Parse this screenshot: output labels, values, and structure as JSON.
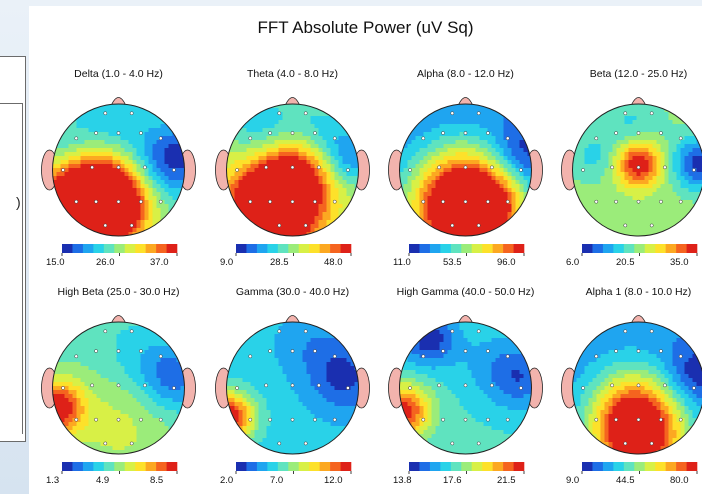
{
  "figure": {
    "title": "FFT Absolute Power  (uV Sq)"
  },
  "left_panel": {
    "glyph": ")"
  },
  "colors": {
    "ramp": [
      "#1a2fb0",
      "#1e6ee6",
      "#1fa5f0",
      "#29d2e8",
      "#5fe3bf",
      "#9bec7a",
      "#d8f046",
      "#fde12a",
      "#fca821",
      "#f5641f",
      "#de2118"
    ],
    "skin": "#f2b3ad",
    "outline": "#222222"
  },
  "maps": [
    {
      "id": "delta",
      "title": "Delta (1.0 - 4.0 Hz)",
      "scale": [
        "15.0",
        "26.0",
        "37.0"
      ],
      "base": 0.42,
      "blobs": [
        [
          0.26,
          0.78,
          0.25,
          1.0
        ],
        [
          0.46,
          0.7,
          0.2,
          0.55
        ],
        [
          0.95,
          0.4,
          0.18,
          -0.35
        ],
        [
          0.7,
          0.55,
          0.18,
          -0.15
        ],
        [
          0.42,
          0.18,
          0.22,
          -0.15
        ],
        [
          0.1,
          0.35,
          0.12,
          -0.1
        ]
      ]
    },
    {
      "id": "theta",
      "title": "Theta (4.0 - 8.0 Hz)",
      "scale": [
        "9.0",
        "28.5",
        "48.0"
      ],
      "base": 0.55,
      "blobs": [
        [
          0.34,
          0.8,
          0.22,
          0.9
        ],
        [
          0.52,
          0.55,
          0.2,
          0.45
        ],
        [
          0.95,
          0.4,
          0.16,
          -0.35
        ],
        [
          0.25,
          0.15,
          0.2,
          -0.25
        ],
        [
          0.7,
          0.18,
          0.18,
          -0.2
        ]
      ]
    },
    {
      "id": "alpha",
      "title": "Alpha (8.0 - 12.0 Hz)",
      "scale": [
        "11.0",
        "53.5",
        "96.0"
      ],
      "base": 0.18,
      "blobs": [
        [
          0.45,
          0.82,
          0.28,
          0.95
        ],
        [
          0.72,
          0.78,
          0.18,
          0.4
        ],
        [
          0.92,
          0.38,
          0.16,
          -0.18
        ],
        [
          0.5,
          0.55,
          0.22,
          0.25
        ]
      ]
    },
    {
      "id": "beta",
      "title": "Beta (12.0 - 25.0 Hz)",
      "scale": [
        "6.0",
        "20.5",
        "35.0"
      ],
      "base": 0.5,
      "blobs": [
        [
          0.5,
          0.45,
          0.12,
          0.55
        ],
        [
          0.96,
          0.45,
          0.14,
          -0.45
        ],
        [
          0.15,
          0.4,
          0.14,
          -0.15
        ],
        [
          0.45,
          0.15,
          0.18,
          -0.15
        ]
      ]
    },
    {
      "id": "highbeta",
      "title": "High Beta (25.0 - 30.0 Hz)",
      "scale": [
        "1.3",
        "4.9",
        "8.5"
      ],
      "base": 0.42,
      "blobs": [
        [
          0.03,
          0.65,
          0.14,
          0.6
        ],
        [
          0.92,
          0.42,
          0.18,
          -0.3
        ],
        [
          0.5,
          0.78,
          0.3,
          0.15
        ],
        [
          0.62,
          0.25,
          0.2,
          -0.1
        ]
      ]
    },
    {
      "id": "gamma",
      "title": "Gamma (30.0 - 40.0 Hz)",
      "scale": [
        "2.0",
        "7.0",
        "12.0"
      ],
      "base": 0.32,
      "blobs": [
        [
          0.02,
          0.72,
          0.13,
          0.7
        ],
        [
          0.9,
          0.42,
          0.2,
          -0.25
        ],
        [
          0.62,
          0.15,
          0.2,
          -0.1
        ]
      ]
    },
    {
      "id": "highgamma",
      "title": "High Gamma (40.0 - 50.0 Hz)",
      "scale": [
        "13.8",
        "17.6",
        "21.5"
      ],
      "base": 0.38,
      "blobs": [
        [
          0.03,
          0.68,
          0.14,
          0.6
        ],
        [
          0.22,
          0.12,
          0.15,
          -0.35
        ],
        [
          0.92,
          0.42,
          0.18,
          -0.25
        ],
        [
          0.68,
          0.3,
          0.2,
          -0.1
        ]
      ]
    },
    {
      "id": "alpha1",
      "title": "Alpha 1 (8.0 - 10.0 Hz)",
      "scale": [
        "9.0",
        "44.5",
        "80.0"
      ],
      "base": 0.2,
      "blobs": [
        [
          0.5,
          0.88,
          0.25,
          0.85
        ],
        [
          0.45,
          0.62,
          0.22,
          0.35
        ],
        [
          0.93,
          0.4,
          0.16,
          -0.2
        ]
      ]
    }
  ]
}
